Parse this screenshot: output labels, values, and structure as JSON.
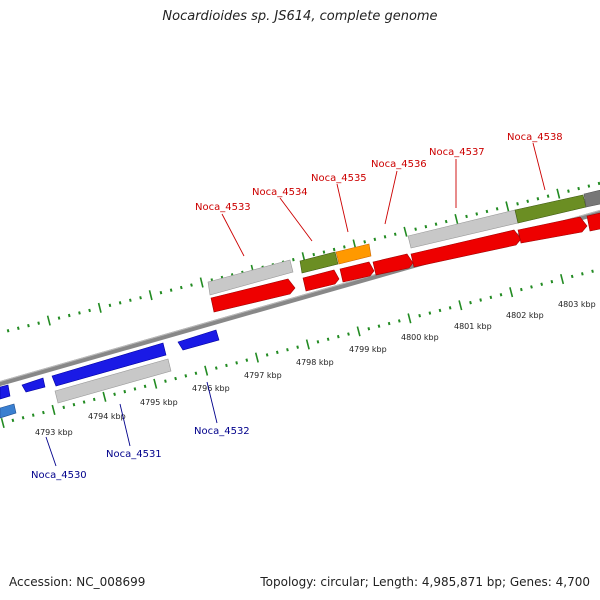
{
  "title": "Nocardioides sp. JS614, complete genome",
  "footer": {
    "accession": "Accession: NC_008699",
    "stats": "Topology: circular; Length: 4,985,871 bp; Genes: 4,700"
  },
  "colors": {
    "forward_gene": "#ee0000",
    "reverse_gene": "#1a1ae6",
    "forward_label": "#cc0000",
    "reverse_label": "#00008b",
    "gray_feature": "#c0c0c0",
    "green_feature": "#6b8e23",
    "orange_feature": "#ff9900",
    "tick": "#228b22",
    "backbone": "#888888"
  },
  "scale_labels": [
    "4793 kbp",
    "4794 kbp",
    "4795 kbp",
    "4796 kbp",
    "4797 kbp",
    "4798 kbp",
    "4799 kbp",
    "4800 kbp",
    "4801 kbp",
    "4802 kbp",
    "4803 kbp"
  ],
  "forward_labels": [
    "Noca_4533",
    "Noca_4534",
    "Noca_4535",
    "Noca_4536",
    "Noca_4537",
    "Noca_4538"
  ],
  "reverse_labels": [
    "Noca_4530",
    "Noca_4531",
    "Noca_4532"
  ]
}
